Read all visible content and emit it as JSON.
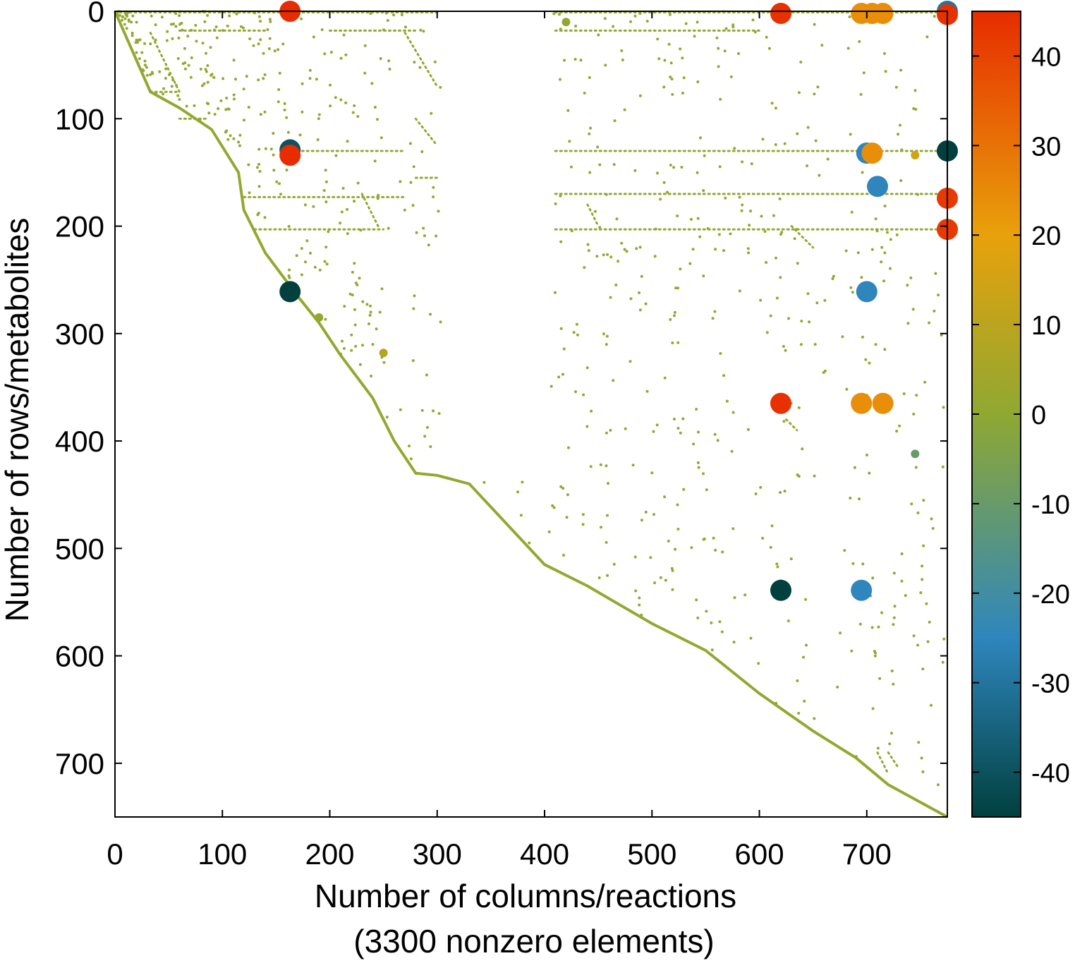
{
  "chart_data": {
    "type": "scatter",
    "title": "",
    "xlabel": "Number of columns/reactions",
    "xlabel_line2": "(3300 nonzero elements)",
    "ylabel": "Number of rows/metabolites",
    "xlim": [
      0,
      775
    ],
    "ylim": [
      0,
      750
    ],
    "y_inverted": true,
    "grid": false,
    "x_ticks": [
      0,
      100,
      200,
      300,
      400,
      500,
      600,
      700
    ],
    "y_ticks": [
      0,
      100,
      200,
      300,
      400,
      500,
      600,
      700
    ],
    "colorbar": {
      "range": [
        -45,
        45
      ],
      "ticks": [
        40,
        30,
        20,
        10,
        0,
        -10,
        -20,
        -30,
        -40
      ],
      "stops": [
        {
          "value": -45,
          "color": "#01403f"
        },
        {
          "value": -25,
          "color": "#2e86bd"
        },
        {
          "value": 0,
          "color": "#8fa832"
        },
        {
          "value": 20,
          "color": "#e8a10b"
        },
        {
          "value": 45,
          "color": "#e72c00"
        }
      ]
    },
    "diagonal_band": {
      "value": 1,
      "points": [
        [
          0,
          0
        ],
        [
          33,
          75
        ],
        [
          60,
          90
        ],
        [
          90,
          110
        ],
        [
          115,
          150
        ],
        [
          120,
          185
        ],
        [
          140,
          225
        ],
        [
          170,
          265
        ],
        [
          190,
          290
        ],
        [
          210,
          320
        ],
        [
          240,
          360
        ],
        [
          260,
          400
        ],
        [
          280,
          430
        ],
        [
          300,
          432
        ],
        [
          330,
          440
        ],
        [
          400,
          515
        ],
        [
          430,
          530
        ],
        [
          440,
          535
        ],
        [
          500,
          570
        ],
        [
          550,
          595
        ],
        [
          600,
          635
        ],
        [
          650,
          670
        ],
        [
          690,
          695
        ],
        [
          720,
          720
        ],
        [
          775,
          750
        ]
      ]
    },
    "segments": [
      {
        "x0": 0,
        "y0": 1,
        "x1": 300,
        "y1": 1,
        "value": 1
      },
      {
        "x0": 410,
        "y0": 1,
        "x1": 775,
        "y1": 1,
        "value": 1
      },
      {
        "x0": 60,
        "y0": 18,
        "x1": 140,
        "y1": 18,
        "value": 1
      },
      {
        "x0": 200,
        "y0": 18,
        "x1": 280,
        "y1": 18,
        "value": 1
      },
      {
        "x0": 410,
        "y0": 18,
        "x1": 600,
        "y1": 18,
        "value": 1
      },
      {
        "x0": 33,
        "y0": 20,
        "x1": 60,
        "y1": 75,
        "value": 1
      },
      {
        "x0": 33,
        "y0": 75,
        "x1": 60,
        "y1": 75,
        "value": 1
      },
      {
        "x0": 60,
        "y0": 100,
        "x1": 85,
        "y1": 100,
        "value": 1
      },
      {
        "x0": 270,
        "y0": 20,
        "x1": 300,
        "y1": 70,
        "value": 1
      },
      {
        "x0": 410,
        "y0": 130,
        "x1": 775,
        "y1": 130,
        "value": 1
      },
      {
        "x0": 165,
        "y0": 130,
        "x1": 270,
        "y1": 130,
        "value": 1
      },
      {
        "x0": 280,
        "y0": 155,
        "x1": 300,
        "y1": 155,
        "value": 1
      },
      {
        "x0": 410,
        "y0": 170,
        "x1": 775,
        "y1": 170,
        "value": 1
      },
      {
        "x0": 120,
        "y0": 173,
        "x1": 270,
        "y1": 173,
        "value": 1
      },
      {
        "x0": 130,
        "y0": 203,
        "x1": 250,
        "y1": 203,
        "value": 1
      },
      {
        "x0": 410,
        "y0": 203,
        "x1": 775,
        "y1": 203,
        "value": 1
      },
      {
        "x0": 620,
        "y0": 365,
        "x1": 630,
        "y1": 365,
        "value": 1
      },
      {
        "x0": 625,
        "y0": 380,
        "x1": 635,
        "y1": 390,
        "value": 1
      },
      {
        "x0": 710,
        "y0": 690,
        "x1": 720,
        "y1": 710,
        "value": 1
      },
      {
        "x0": 720,
        "y0": 690,
        "x1": 730,
        "y1": 705,
        "value": 1
      },
      {
        "x0": 440,
        "y0": 180,
        "x1": 450,
        "y1": 200,
        "value": 1
      },
      {
        "x0": 230,
        "y0": 170,
        "x1": 245,
        "y1": 200,
        "value": 1
      },
      {
        "x0": 280,
        "y0": 100,
        "x1": 300,
        "y1": 125,
        "value": 1
      },
      {
        "x0": 630,
        "y0": 200,
        "x1": 650,
        "y1": 220,
        "value": 1
      }
    ],
    "highlighted_points": [
      {
        "x": 163,
        "y": 0,
        "value": 45
      },
      {
        "x": 620,
        "y": 2,
        "value": 44
      },
      {
        "x": 695,
        "y": 2,
        "value": 24
      },
      {
        "x": 705,
        "y": 2,
        "value": 24
      },
      {
        "x": 715,
        "y": 2,
        "value": 24
      },
      {
        "x": 775,
        "y": 0,
        "value": -30
      },
      {
        "x": 775,
        "y": 3,
        "value": 44
      },
      {
        "x": 163,
        "y": 129,
        "value": -40
      },
      {
        "x": 163,
        "y": 134,
        "value": 45
      },
      {
        "x": 700,
        "y": 132,
        "value": -25
      },
      {
        "x": 705,
        "y": 132,
        "value": 24
      },
      {
        "x": 775,
        "y": 130,
        "value": -45
      },
      {
        "x": 710,
        "y": 163,
        "value": -25
      },
      {
        "x": 775,
        "y": 174,
        "value": 42
      },
      {
        "x": 775,
        "y": 203,
        "value": 42
      },
      {
        "x": 163,
        "y": 261,
        "value": -45
      },
      {
        "x": 700,
        "y": 261,
        "value": -25
      },
      {
        "x": 620,
        "y": 365,
        "value": 44
      },
      {
        "x": 695,
        "y": 365,
        "value": 24
      },
      {
        "x": 715,
        "y": 365,
        "value": 24
      },
      {
        "x": 620,
        "y": 539,
        "value": -45
      },
      {
        "x": 695,
        "y": 539,
        "value": -25
      }
    ],
    "small_marks": [
      {
        "x": 250,
        "y": 318,
        "value": 8
      },
      {
        "x": 745,
        "y": 134,
        "value": 15
      },
      {
        "x": 745,
        "y": 412,
        "value": -10
      },
      {
        "x": 420,
        "y": 10,
        "value": 1
      },
      {
        "x": 190,
        "y": 285,
        "value": 1
      }
    ]
  }
}
